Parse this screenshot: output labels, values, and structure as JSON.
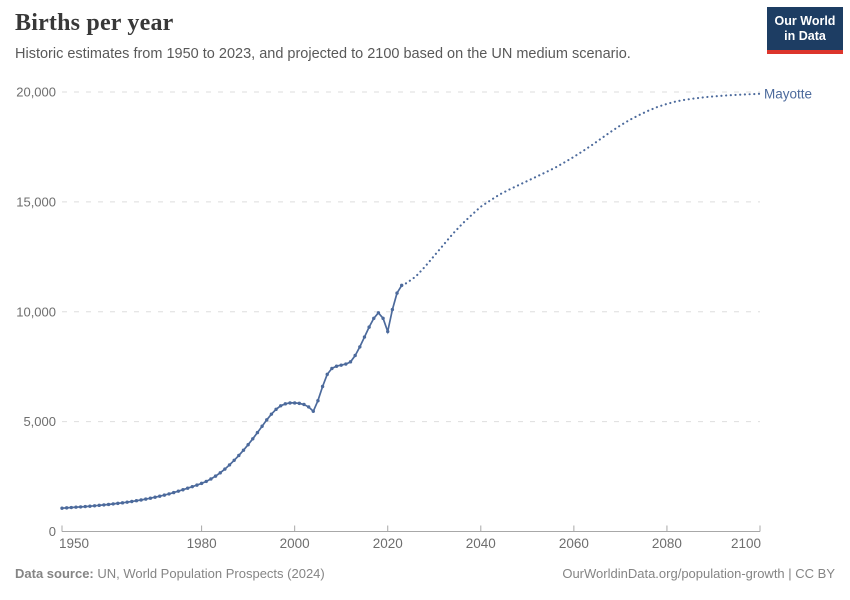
{
  "header": {
    "title": "Births per year",
    "subtitle": "Historic estimates from 1950 to 2023, and projected to 2100 based on the UN medium scenario."
  },
  "logo": {
    "line1": "Our World",
    "line2": "in Data",
    "bg_color": "#1d3d63",
    "bar_color": "#dc352c"
  },
  "footer": {
    "source_label": "Data source:",
    "source_text": " UN, World Population Prospects (2024)",
    "right_text": "OurWorldinData.org/population-growth | CC BY"
  },
  "chart_data": {
    "type": "line",
    "title": "Births per year",
    "entity_label": "Mayotte",
    "line_color": "#4c6a9c",
    "grid": "horizontal-dashed",
    "legend_position": "end-of-line",
    "xlim": [
      1950,
      2100
    ],
    "ylim": [
      0,
      20000
    ],
    "x_ticks": [
      1950,
      1980,
      2000,
      2020,
      2040,
      2060,
      2080,
      2100
    ],
    "x_tick_labels": [
      "1950",
      "1980",
      "2000",
      "2020",
      "2040",
      "2060",
      "2080",
      "2100"
    ],
    "y_ticks": [
      0,
      5000,
      10000,
      15000,
      20000
    ],
    "y_tick_labels": [
      "0",
      "5,000",
      "10,000",
      "15,000",
      "20,000"
    ],
    "series": [
      {
        "name": "Mayotte — historic estimates (1950–2023)",
        "style": "solid-with-markers",
        "x": [
          1950,
          1951,
          1952,
          1953,
          1954,
          1955,
          1956,
          1957,
          1958,
          1959,
          1960,
          1961,
          1962,
          1963,
          1964,
          1965,
          1966,
          1967,
          1968,
          1969,
          1970,
          1971,
          1972,
          1973,
          1974,
          1975,
          1976,
          1977,
          1978,
          1979,
          1980,
          1981,
          1982,
          1983,
          1984,
          1985,
          1986,
          1987,
          1988,
          1989,
          1990,
          1991,
          1992,
          1993,
          1994,
          1995,
          1996,
          1997,
          1998,
          1999,
          2000,
          2001,
          2002,
          2003,
          2004,
          2005,
          2006,
          2007,
          2008,
          2009,
          2010,
          2011,
          2012,
          2013,
          2014,
          2015,
          2016,
          2017,
          2018,
          2019,
          2020,
          2021,
          2022,
          2023
        ],
        "y": [
          1060,
          1075,
          1090,
          1105,
          1120,
          1135,
          1150,
          1170,
          1190,
          1210,
          1230,
          1255,
          1280,
          1305,
          1335,
          1365,
          1400,
          1435,
          1475,
          1515,
          1560,
          1605,
          1655,
          1710,
          1770,
          1835,
          1900,
          1970,
          2040,
          2110,
          2190,
          2280,
          2390,
          2520,
          2670,
          2840,
          3030,
          3240,
          3460,
          3700,
          3950,
          4220,
          4500,
          4790,
          5080,
          5340,
          5560,
          5720,
          5810,
          5850,
          5850,
          5830,
          5780,
          5670,
          5470,
          5950,
          6600,
          7150,
          7420,
          7520,
          7570,
          7620,
          7720,
          8010,
          8400,
          8850,
          9300,
          9700,
          9950,
          9700,
          9100,
          10100,
          10850,
          11200
        ]
      },
      {
        "name": "Mayotte — UN medium scenario projection (2023–2100)",
        "style": "dotted",
        "x": [
          2023,
          2024,
          2026,
          2028,
          2030,
          2032,
          2034,
          2036,
          2038,
          2040,
          2042,
          2044,
          2046,
          2048,
          2050,
          2052,
          2054,
          2056,
          2058,
          2060,
          2062,
          2064,
          2066,
          2068,
          2070,
          2072,
          2074,
          2076,
          2078,
          2080,
          2082,
          2084,
          2086,
          2088,
          2090,
          2092,
          2094,
          2096,
          2098,
          2100
        ],
        "y": [
          11200,
          11300,
          11600,
          12050,
          12550,
          13050,
          13550,
          14000,
          14400,
          14780,
          15060,
          15330,
          15550,
          15750,
          15950,
          16150,
          16350,
          16560,
          16800,
          17050,
          17320,
          17600,
          17900,
          18200,
          18480,
          18730,
          18950,
          19150,
          19320,
          19460,
          19570,
          19650,
          19710,
          19760,
          19800,
          19830,
          19860,
          19880,
          19900,
          19920
        ]
      }
    ]
  }
}
